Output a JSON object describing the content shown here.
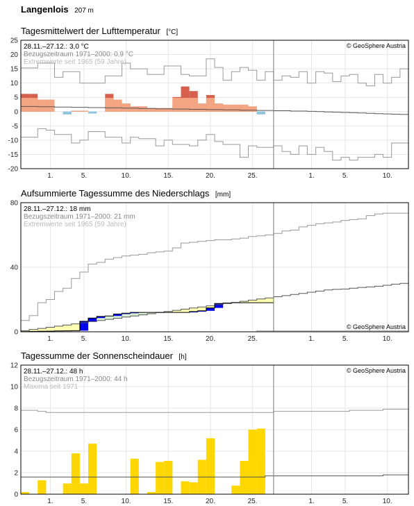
{
  "header": {
    "station": "Langenlois",
    "altitude": "207 m"
  },
  "colors": {
    "temp_warm": "#f4a582",
    "temp_warm_strong": "#d6604d",
    "temp_cold": "#92c5de",
    "precip_bar": "#0000ee",
    "precip_dry": "#ffffb2",
    "precip_wet": "#d9f0d3",
    "sun_bar": "#ffd700",
    "extreme_line": "#999999",
    "normal_line": "#555555",
    "divider": "#777777",
    "grid": "#e6e6e6",
    "info_gray": "#888888",
    "info_light": "#bbbbbb"
  },
  "x_axis": {
    "ticks": [
      {
        "day": 4,
        "label": "1."
      },
      {
        "day": 8,
        "label": "5."
      },
      {
        "day": 13,
        "label": "10."
      },
      {
        "day": 18,
        "label": "15."
      },
      {
        "day": 23,
        "label": "20."
      },
      {
        "day": 28,
        "label": "25."
      },
      {
        "day": 35,
        "label": "1."
      },
      {
        "day": 39,
        "label": "5."
      },
      {
        "day": 44,
        "label": "10."
      }
    ],
    "total_days": 46,
    "today_index": 30
  },
  "chart_data": [
    {
      "id": "temperature",
      "type": "bar",
      "title": "Tagesmittelwert der Lufttemperatur",
      "unit": "[°C]",
      "ylim": [
        -20,
        25
      ],
      "yticks": [
        25,
        20,
        15,
        10,
        5,
        0,
        -5,
        -10,
        -15,
        -20
      ],
      "info": [
        "28.11.–27.12.: 3,0 °C",
        "Bezugszeitraum 1971–2000: 0,9 °C",
        "Extremwerte seit 1965 (59 Jahre)"
      ],
      "copyright": "© GeoSphere Austria",
      "anomaly_strong": [
        6.2,
        6.2,
        4.2,
        4.2,
        0,
        -0.9,
        0.3,
        0.3,
        -0.6,
        0,
        6.2,
        4.2,
        2.8,
        1.8,
        1.8,
        1.2,
        1.2,
        1.2,
        5.1,
        8.8,
        7.2,
        2.8,
        5.8,
        2.8,
        2.4,
        2.4,
        2.4,
        1.8,
        -0.9
      ],
      "values": [
        4.8,
        4.8,
        4.2,
        4.2,
        0,
        -1.0,
        0.3,
        0.3,
        -0.7,
        0,
        4.8,
        4.2,
        2.8,
        1.8,
        1.8,
        1.2,
        1.2,
        1.2,
        4.8,
        4.8,
        4.8,
        2.8,
        4.8,
        2.8,
        2.4,
        2.4,
        2.4,
        1.8,
        -1.0
      ],
      "normal": [
        1.8,
        1.8,
        1.7,
        1.7,
        1.6,
        1.6,
        1.5,
        1.5,
        1.4,
        1.4,
        1.3,
        1.3,
        1.2,
        1.2,
        1.1,
        1.1,
        1.0,
        1.0,
        0.9,
        0.9,
        0.8,
        0.8,
        0.7,
        0.7,
        0.6,
        0.6,
        0.5,
        0.5,
        0.4,
        0.4,
        0.3,
        0.3,
        0.2,
        0.2,
        0.1,
        0.0,
        -0.1,
        -0.2,
        -0.3,
        -0.4,
        -0.5,
        -0.6,
        -0.7,
        -0.8,
        -0.9,
        -1.0
      ],
      "max_extreme": [
        15.3,
        15.3,
        17.0,
        17.0,
        12.0,
        14.0,
        14.0,
        10.0,
        10.0,
        10.0,
        12.5,
        12.5,
        17.0,
        15.0,
        15.0,
        13.0,
        13.0,
        16.0,
        16.0,
        13.0,
        12.5,
        12.5,
        18.5,
        15.5,
        11.0,
        14.0,
        15.5,
        14.5,
        11.0,
        14.0,
        11.0,
        12.5,
        12.0,
        14.0,
        10.0,
        14.0,
        13.5,
        10.5,
        12.5,
        13.0,
        10.0,
        9.0,
        13.0,
        10.0,
        12.0,
        15.0
      ],
      "min_extreme": [
        -9.0,
        -9.0,
        -6.0,
        -6.5,
        -8.0,
        -8.0,
        -11.0,
        -10.0,
        -7.0,
        -7.0,
        -9.0,
        -9.0,
        -11.0,
        -9.0,
        -9.5,
        -9.5,
        -12.0,
        -10.0,
        -11.5,
        -11.5,
        -12.0,
        -10.0,
        -8.0,
        -10.5,
        -11.5,
        -11.5,
        -16.0,
        -12.0,
        -12.5,
        -12.5,
        -12.0,
        -14.0,
        -15.0,
        -12.0,
        -15.0,
        -12.5,
        -14.0,
        -17.0,
        -16.0,
        -17.0,
        -16.0,
        -16.0,
        -15.0,
        -16.0,
        -11.0,
        -11.0
      ]
    },
    {
      "id": "precipitation",
      "type": "area",
      "title": "Aufsummierte Tagessumme des Niederschlags",
      "unit": "[mm]",
      "ylim": [
        0,
        80
      ],
      "yticks": [
        80,
        40,
        0
      ],
      "info": [
        "28.11.–27.12.: 18 mm",
        "Bezugszeitraum 1971–2000: 21 mm",
        "Extremwerte seit 1965 (59 Jahre)"
      ],
      "copyright": "© GeoSphere Austria",
      "cumulative": [
        0.1,
        0.2,
        0.3,
        0.4,
        0.5,
        0.6,
        0.7,
        6.5,
        8.5,
        9.5,
        9.8,
        11.0,
        11.5,
        12.0,
        12.0,
        12.0,
        12.0,
        12.0,
        12.0,
        12.0,
        12.5,
        13.0,
        14.8,
        17.5,
        17.8,
        18.0,
        18.0,
        18.0,
        18.0,
        18.0
      ],
      "normal": [
        0.7,
        1.4,
        2.1,
        2.8,
        3.5,
        4.2,
        4.9,
        5.6,
        6.3,
        7.0,
        7.7,
        8.4,
        9.1,
        9.8,
        10.5,
        11.2,
        11.9,
        12.6,
        13.3,
        14.0,
        14.7,
        15.4,
        16.1,
        16.8,
        17.5,
        18.2,
        18.9,
        19.6,
        20.3,
        21.0,
        21.7,
        22.4,
        23.1,
        23.8,
        24.5,
        25.2,
        25.9,
        26.3,
        26.5,
        27.0,
        27.5,
        27.8,
        28.2,
        28.8,
        29.5,
        30.0
      ],
      "max_extreme": [
        7.0,
        10.0,
        18.0,
        20.0,
        25.0,
        27.0,
        33.0,
        37.0,
        42.0,
        43.0,
        45.0,
        46.0,
        47.0,
        47.5,
        48.0,
        49.0,
        49.5,
        50.0,
        52.0,
        55.0,
        55.5,
        56.0,
        56.5,
        57.0,
        57.0,
        57.5,
        58.0,
        59.0,
        59.5,
        60.0,
        61.0,
        62.5,
        63.0,
        65.0,
        66.0,
        67.0,
        67.5,
        68.0,
        69.0,
        69.5,
        70.0,
        72.0,
        73.0,
        73.5,
        73.5,
        73.5
      ],
      "min_extreme": [
        0.0,
        0.0,
        0.0,
        0.0,
        0.0,
        0.0,
        0.0,
        0.0,
        0.0,
        0.0,
        0.0,
        0.0,
        0.0,
        0.0,
        0.0,
        0.0,
        0.0,
        0.0,
        0.0,
        0.0,
        0.0,
        0.0,
        0.0,
        0.0,
        0.0,
        0.0,
        0.0,
        0.0,
        0.5,
        0.5,
        0.5,
        0.5,
        0.5,
        0.5,
        0.5,
        0.5,
        0.5,
        0.5,
        0.5,
        0.5,
        0.5,
        0.5,
        0.5,
        0.5,
        0.5,
        0.5
      ]
    },
    {
      "id": "sunshine",
      "type": "bar",
      "title": "Tagessumme der Sonnenscheindauer",
      "unit": "[h]",
      "ylim": [
        0,
        12
      ],
      "yticks": [
        12,
        10,
        8,
        6,
        4,
        2,
        0
      ],
      "info": [
        "28.11.–27.12.: 48 h",
        "Bezugszeitraum 1971–2000: 44 h",
        "Maxima seit 1971"
      ],
      "copyright": "© GeoSphere Austria",
      "values": [
        0.2,
        0,
        1.3,
        0,
        0,
        1.0,
        3.8,
        1.0,
        4.7,
        0,
        0,
        0,
        0,
        3.3,
        0,
        0.2,
        3.0,
        3.1,
        0,
        1.2,
        1.1,
        3.2,
        5.2,
        0,
        0,
        0.8,
        3.1,
        6.0,
        6.1,
        0
      ],
      "normal": [
        1.6,
        1.6,
        1.6,
        1.6,
        1.6,
        1.6,
        1.6,
        1.6,
        1.6,
        1.6,
        1.6,
        1.6,
        1.6,
        1.6,
        1.6,
        1.6,
        1.6,
        1.6,
        1.6,
        1.6,
        1.6,
        1.6,
        1.6,
        1.6,
        1.6,
        1.6,
        1.6,
        1.6,
        1.6,
        1.7,
        1.7,
        1.7,
        1.7,
        1.7,
        1.7,
        1.7,
        1.7,
        1.7,
        1.7,
        1.7,
        1.7,
        1.7,
        1.7,
        1.8,
        1.8,
        1.8
      ],
      "max_extreme": [
        7.8,
        7.8,
        7.7,
        7.6,
        7.6,
        7.6,
        7.6,
        7.6,
        7.6,
        7.6,
        7.6,
        7.6,
        7.6,
        7.6,
        7.6,
        7.6,
        7.6,
        7.6,
        7.6,
        7.6,
        7.6,
        7.6,
        7.6,
        7.6,
        7.6,
        7.6,
        7.6,
        7.6,
        7.6,
        7.6,
        7.7,
        7.7,
        7.7,
        7.7,
        7.7,
        7.7,
        7.7,
        7.7,
        7.7,
        7.8,
        7.8,
        7.8,
        7.8,
        7.9,
        7.9,
        7.9
      ]
    }
  ]
}
